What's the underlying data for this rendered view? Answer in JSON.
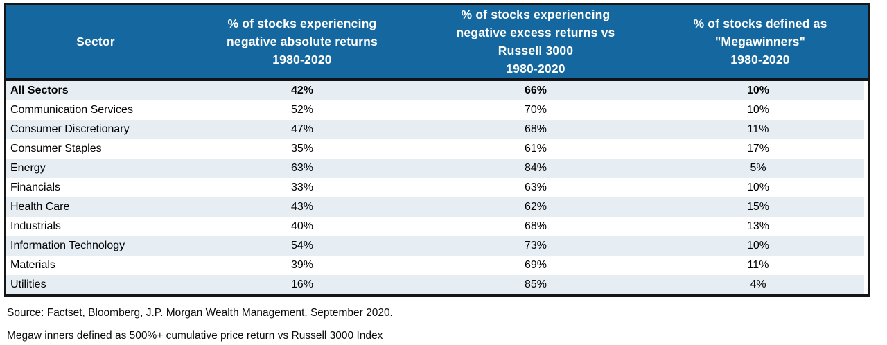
{
  "chart_data": {
    "type": "table",
    "title": "",
    "columns": [
      "Sector",
      "% of stocks experiencing negative absolute returns 1980-2020",
      "% of stocks experiencing negative excess returns vs Russell 3000 1980-2020",
      "% of stocks defined as \"Megawinners\" 1980-2020"
    ],
    "rows": [
      [
        "All Sectors",
        "42%",
        "66%",
        "10%"
      ],
      [
        "Communication Services",
        "52%",
        "70%",
        "10%"
      ],
      [
        "Consumer Discretionary",
        "47%",
        "68%",
        "11%"
      ],
      [
        "Consumer Staples",
        "35%",
        "61%",
        "17%"
      ],
      [
        "Energy",
        "63%",
        "84%",
        "5%"
      ],
      [
        "Financials",
        "33%",
        "63%",
        "10%"
      ],
      [
        "Health Care",
        "43%",
        "62%",
        "15%"
      ],
      [
        "Industrials",
        "40%",
        "68%",
        "13%"
      ],
      [
        "Information Technology",
        "54%",
        "73%",
        "10%"
      ],
      [
        "Materials",
        "39%",
        "69%",
        "11%"
      ],
      [
        "Utilities",
        "16%",
        "85%",
        "4%"
      ]
    ],
    "bold_row_index": 0,
    "layout_hints": {
      "striped_rows": "odd rows (1st, 3rd, ...) light blue starting with All Sectors",
      "header_position": "top",
      "value_alignment": "center"
    }
  },
  "table": {
    "header": [
      {
        "label": "Sector"
      },
      {
        "label": "% of stocks experiencing\nnegative absolute returns\n1980-2020"
      },
      {
        "label": "% of stocks experiencing\nnegative excess returns vs\nRussell 3000\n1980-2020"
      },
      {
        "label": "% of stocks defined as\n\"Megawinners\"\n1980-2020"
      }
    ]
  },
  "footnotes": {
    "source": "Source: Factset, Bloomberg, J.P. Morgan Wealth Management. September 2020.",
    "definition": "Megaw inners defined as 500%+ cumulative price return vs Russell 3000 Index"
  },
  "colors": {
    "header_bg": "#15689F",
    "header_text": "#FFFFFF",
    "stripe_bg": "#E6EEF4",
    "row_bg": "#FFFFFF",
    "border": "#161616",
    "body_text": "#000000"
  }
}
